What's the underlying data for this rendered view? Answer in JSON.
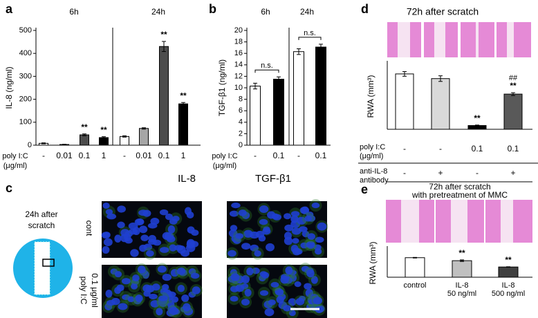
{
  "chart_data": [
    {
      "type": "bar",
      "label": "a",
      "ylabel": "IL-8 (ng/ml)",
      "groups": [
        "6h",
        "24h"
      ],
      "xlabel": [
        "poly I:C",
        "(μg/ml)"
      ],
      "categories": [
        "-",
        "0.01",
        "0.1",
        "1",
        "-",
        "0.01",
        "0.1",
        "1"
      ],
      "values": [
        8,
        3,
        45,
        33,
        38,
        73,
        430,
        180
      ],
      "errors": [
        2,
        1,
        4,
        4,
        3,
        3,
        22,
        6
      ],
      "colors": [
        "#ffffff",
        "#a6a6a6",
        "#4d4d4d",
        "#000000",
        "#ffffff",
        "#a6a6a6",
        "#4d4d4d",
        "#000000"
      ],
      "significance": [
        null,
        null,
        "**",
        "**",
        null,
        null,
        "**",
        "**"
      ],
      "ylim": [
        0,
        500
      ],
      "yticks": [
        0,
        100,
        200,
        300,
        400,
        500
      ]
    },
    {
      "type": "bar",
      "label": "b",
      "ylabel": "TGF-β1 (ng/ml)",
      "groups": [
        "6h",
        "24h"
      ],
      "xlabel": [
        "poly I:C",
        "(μg/ml)"
      ],
      "categories": [
        "-",
        "0.1",
        "-",
        "0.1"
      ],
      "values": [
        10.3,
        11.5,
        16.3,
        17.1
      ],
      "errors": [
        0.5,
        0.4,
        0.5,
        0.5
      ],
      "colors": [
        "#ffffff",
        "#000000",
        "#ffffff",
        "#000000"
      ],
      "comparisons": [
        "n.s.",
        "n.s."
      ],
      "ylim": [
        0,
        20
      ],
      "yticks": [
        0,
        2,
        4,
        6,
        8,
        10,
        12,
        14,
        16,
        18,
        20
      ]
    },
    {
      "type": "bar",
      "label": "d",
      "title": [
        "72h after scratch"
      ],
      "ylabel": "RWA (mm³)",
      "values": [
        11.8,
        10.8,
        0.8,
        7.5
      ],
      "errors": [
        0.5,
        0.6,
        0.1,
        0.3
      ],
      "colors": [
        "#ffffff",
        "#d9d9d9",
        "#000000",
        "#595959"
      ],
      "significance": [
        null,
        null,
        "**",
        "**"
      ],
      "significance2": [
        null,
        null,
        null,
        "##"
      ],
      "conditions": [
        {
          "label": [
            "poly I:C",
            "(μg/ml)"
          ],
          "values": [
            "-",
            "-",
            "0.1",
            "0.1"
          ]
        },
        {
          "label": [
            "anti-IL-8",
            "antibody"
          ],
          "values": [
            "-",
            "+",
            "-",
            "+"
          ]
        }
      ],
      "ylim": [
        0,
        14
      ]
    },
    {
      "type": "bar",
      "label": "e",
      "title": [
        "72h after scratch",
        "with pretreatment of MMC"
      ],
      "ylabel": "RWA (mm³)",
      "categories": [
        [
          "control"
        ],
        [
          "IL-8",
          "50 ng/ml"
        ],
        [
          "IL-8",
          "500 ng/ml"
        ]
      ],
      "values": [
        12.4,
        10.5,
        6.5
      ],
      "errors": [
        0.2,
        0.5,
        0.15
      ],
      "colors": [
        "#ffffff",
        "#c0c0c0",
        "#404040"
      ],
      "significance": [
        null,
        "**",
        "**"
      ],
      "ylim": [
        0,
        18
      ]
    }
  ],
  "image_panel": {
    "label": "c",
    "schematic": [
      "24h after",
      "scratch"
    ],
    "columns": [
      "IL-8",
      "TGF-β1"
    ],
    "rows": [
      [
        "cont"
      ],
      [
        "poly I:C",
        "0.1 μg/ml"
      ]
    ]
  }
}
